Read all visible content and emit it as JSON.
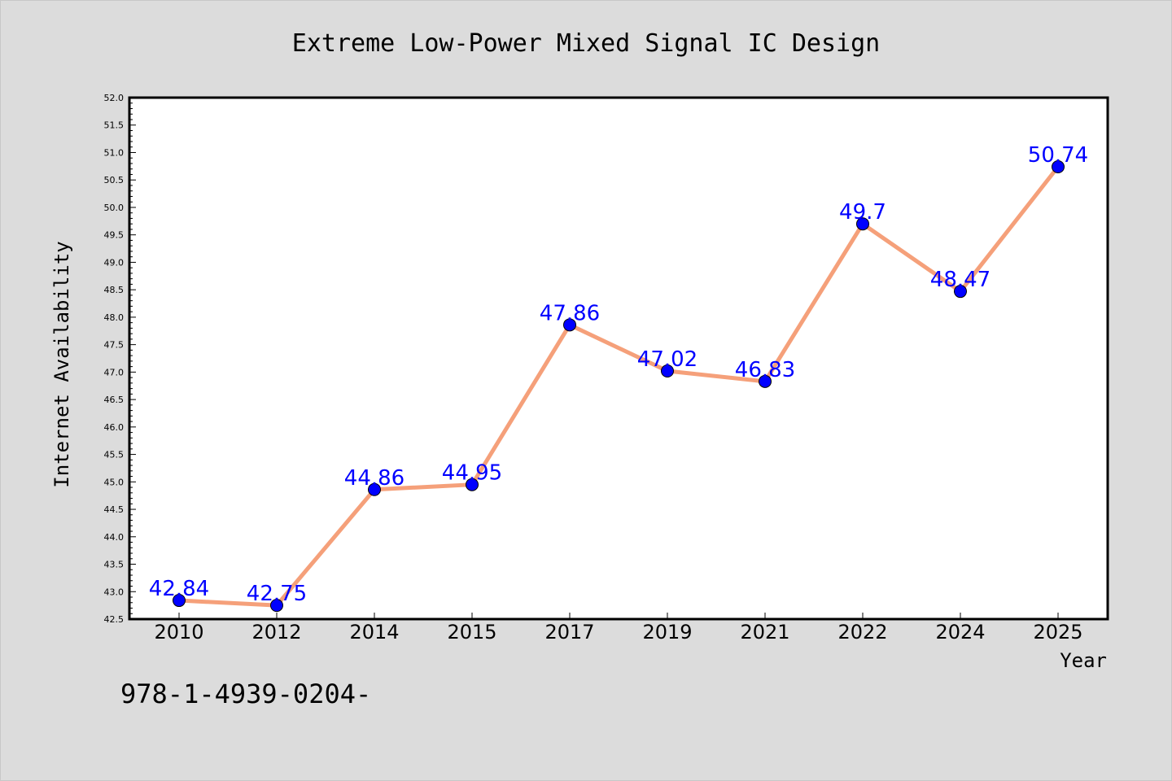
{
  "chart_data": {
    "type": "line",
    "title": "Extreme Low-Power Mixed Signal IC Design",
    "xlabel": "Year",
    "ylabel": "Internet Availability",
    "categories": [
      "2010",
      "2012",
      "2014",
      "2015",
      "2017",
      "2019",
      "2021",
      "2022",
      "2024",
      "2025"
    ],
    "series": [
      {
        "values": [
          42.84,
          42.75,
          44.86,
          44.95,
          47.86,
          47.02,
          46.83,
          49.7,
          48.47,
          50.74
        ],
        "data_labels": [
          "42.84",
          "42.75",
          "44.86",
          "44.95",
          "47.86",
          "47.02",
          "46.83",
          "49.7",
          "48.47",
          "50.74"
        ]
      }
    ],
    "ylim": [
      42.5,
      52.0
    ],
    "yticks": [
      "42.5",
      "43.0",
      "43.5",
      "44.0",
      "44.5",
      "45.0",
      "45.5",
      "46.0",
      "46.5",
      "47.0",
      "47.5",
      "48.0",
      "48.5",
      "49.0",
      "49.5",
      "50.0",
      "50.5",
      "51.0",
      "51.5",
      "52.0"
    ],
    "grid": false,
    "colors": {
      "line": "#f5a07a",
      "marker": "#0000ff",
      "data_label": "#0000ff",
      "plot_background": "#ffffff",
      "figure_background": "#dcdcdc"
    },
    "footnote": "978-1-4939-0204-"
  }
}
